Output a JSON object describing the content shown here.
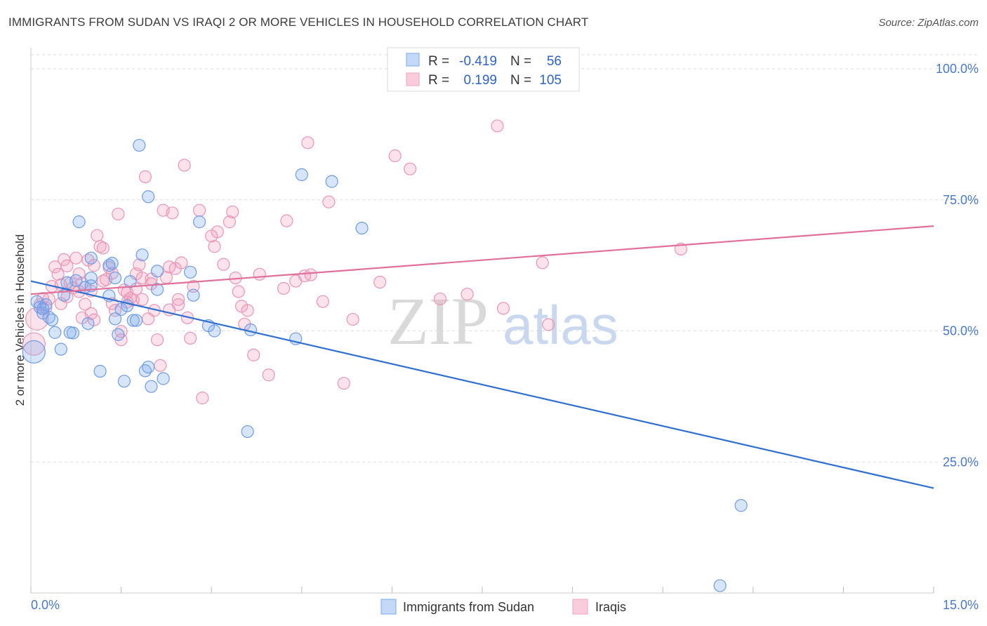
{
  "title": "IMMIGRANTS FROM SUDAN VS IRAQI 2 OR MORE VEHICLES IN HOUSEHOLD CORRELATION CHART",
  "source": "Source: ZipAtlas.com",
  "watermark": {
    "zip": "ZIP",
    "atlas": "atlas"
  },
  "colors": {
    "blue": "#7aaaf0",
    "blue_line": "#2f6fd0",
    "pink": "#f3a0bd",
    "pink_line": "#e07099",
    "tick": "#4a78c8"
  },
  "legend": {
    "rows": [
      {
        "r_label": "R =",
        "r_value": "-0.419",
        "n_label": "N =",
        "n_value": "56"
      },
      {
        "r_label": "R =",
        "r_value": "0.199",
        "n_label": "N =",
        "n_value": "105"
      }
    ]
  },
  "chart_data": {
    "type": "scatter",
    "title": "IMMIGRANTS FROM SUDAN VS IRAQI 2 OR MORE VEHICLES IN HOUSEHOLD CORRELATION CHART",
    "xlabel": "",
    "ylabel": "2 or more Vehicles in Household",
    "xlim": [
      0,
      15
    ],
    "ylim": [
      0,
      100
    ],
    "x_tick_labels": [
      "0.0%",
      "15.0%"
    ],
    "y_ticks": [
      25,
      50,
      75,
      100
    ],
    "y_tick_labels": [
      "25.0%",
      "50.0%",
      "75.0%",
      "100.0%"
    ],
    "grid": true,
    "legend_position": "top-center",
    "series": [
      {
        "name": "Immigrants from Sudan",
        "color": "blue",
        "R": -0.419,
        "N": 56,
        "trend": {
          "x": [
            0,
            15
          ],
          "y": [
            59.5,
            20.0
          ]
        },
        "points": [
          [
            0.1,
            55.6
          ],
          [
            0.15,
            54.5
          ],
          [
            0.2,
            53.4
          ],
          [
            0.25,
            55.0
          ],
          [
            0.3,
            52.6
          ],
          [
            0.35,
            52.1
          ],
          [
            0.4,
            49.7
          ],
          [
            0.5,
            46.5
          ],
          [
            0.55,
            56.8
          ],
          [
            0.6,
            59.2
          ],
          [
            0.7,
            49.6
          ],
          [
            0.75,
            59.6
          ],
          [
            0.8,
            70.8
          ],
          [
            0.9,
            58.3
          ],
          [
            0.95,
            51.4
          ],
          [
            1.0,
            60.1
          ],
          [
            1.0,
            58.6
          ],
          [
            1.0,
            63.9
          ],
          [
            1.15,
            42.3
          ],
          [
            1.3,
            62.5
          ],
          [
            1.3,
            56.7
          ],
          [
            1.35,
            62.9
          ],
          [
            1.4,
            60.1
          ],
          [
            1.4,
            52.3
          ],
          [
            1.45,
            49.3
          ],
          [
            1.5,
            54.1
          ],
          [
            1.55,
            40.4
          ],
          [
            1.6,
            54.8
          ],
          [
            1.65,
            59.4
          ],
          [
            1.7,
            52.0
          ],
          [
            1.8,
            85.4
          ],
          [
            1.85,
            64.5
          ],
          [
            1.9,
            42.4
          ],
          [
            1.95,
            43.1
          ],
          [
            1.95,
            75.6
          ],
          [
            2.0,
            39.4
          ],
          [
            2.1,
            57.9
          ],
          [
            2.1,
            61.4
          ],
          [
            2.2,
            40.9
          ],
          [
            2.65,
            61.2
          ],
          [
            2.7,
            56.8
          ],
          [
            2.8,
            70.8
          ],
          [
            2.95,
            51.0
          ],
          [
            3.05,
            50.0
          ],
          [
            3.6,
            30.8
          ],
          [
            3.65,
            50.2
          ],
          [
            4.4,
            48.5
          ],
          [
            4.5,
            79.8
          ],
          [
            5.0,
            78.5
          ],
          [
            5.5,
            69.6
          ],
          [
            11.8,
            16.7
          ],
          [
            11.45,
            1.4
          ],
          [
            0.05,
            46.0
          ],
          [
            0.2,
            54.2
          ],
          [
            0.65,
            49.7
          ],
          [
            1.75,
            52.0
          ]
        ],
        "sizes": {}
      },
      {
        "name": "Iraqis",
        "color": "pink",
        "R": 0.199,
        "N": 105,
        "trend": {
          "x": [
            0,
            15
          ],
          "y": [
            57.0,
            70.0
          ]
        },
        "points": [
          [
            0.1,
            52.3
          ],
          [
            0.15,
            55.0
          ],
          [
            0.2,
            56.2
          ],
          [
            0.25,
            54.4
          ],
          [
            0.3,
            56.1
          ],
          [
            0.35,
            58.5
          ],
          [
            0.4,
            62.2
          ],
          [
            0.45,
            60.8
          ],
          [
            0.5,
            58.8
          ],
          [
            0.5,
            55.2
          ],
          [
            0.55,
            63.6
          ],
          [
            0.6,
            62.4
          ],
          [
            0.65,
            59.1
          ],
          [
            0.7,
            58.2
          ],
          [
            0.75,
            63.9
          ],
          [
            0.8,
            60.9
          ],
          [
            0.85,
            59.1
          ],
          [
            0.85,
            52.5
          ],
          [
            0.9,
            55.1
          ],
          [
            0.95,
            63.5
          ],
          [
            1.0,
            57.6
          ],
          [
            1.0,
            53.3
          ],
          [
            1.05,
            52.1
          ],
          [
            1.1,
            68.2
          ],
          [
            1.15,
            66.1
          ],
          [
            1.2,
            59.5
          ],
          [
            1.25,
            59.8
          ],
          [
            1.3,
            62.1
          ],
          [
            1.35,
            61.0
          ],
          [
            1.35,
            55.2
          ],
          [
            1.4,
            53.9
          ],
          [
            1.45,
            72.3
          ],
          [
            1.5,
            49.9
          ],
          [
            1.5,
            48.3
          ],
          [
            1.55,
            57.8
          ],
          [
            1.6,
            57.3
          ],
          [
            1.65,
            56.2
          ],
          [
            1.7,
            55.9
          ],
          [
            1.75,
            60.9
          ],
          [
            1.8,
            62.6
          ],
          [
            1.85,
            60.1
          ],
          [
            1.85,
            56.0
          ],
          [
            1.9,
            79.4
          ],
          [
            1.95,
            52.3
          ],
          [
            2.0,
            59.9
          ],
          [
            2.05,
            53.9
          ],
          [
            2.1,
            48.3
          ],
          [
            2.15,
            43.4
          ],
          [
            2.2,
            73.0
          ],
          [
            2.25,
            60.2
          ],
          [
            2.3,
            62.2
          ],
          [
            2.35,
            72.5
          ],
          [
            2.4,
            61.9
          ],
          [
            2.45,
            55.0
          ],
          [
            2.5,
            63.0
          ],
          [
            2.55,
            81.6
          ],
          [
            2.6,
            52.5
          ],
          [
            2.65,
            48.6
          ],
          [
            2.7,
            58.5
          ],
          [
            2.8,
            73.0
          ],
          [
            2.85,
            37.2
          ],
          [
            3.0,
            68.1
          ],
          [
            3.05,
            66.1
          ],
          [
            3.1,
            68.9
          ],
          [
            3.2,
            62.7
          ],
          [
            3.3,
            70.8
          ],
          [
            3.35,
            72.7
          ],
          [
            3.4,
            60.1
          ],
          [
            3.45,
            57.5
          ],
          [
            3.5,
            54.7
          ],
          [
            3.55,
            51.3
          ],
          [
            3.6,
            53.9
          ],
          [
            3.7,
            45.4
          ],
          [
            3.95,
            41.6
          ],
          [
            4.2,
            58.1
          ],
          [
            4.25,
            71.0
          ],
          [
            4.4,
            59.5
          ],
          [
            4.55,
            60.5
          ],
          [
            4.6,
            85.9
          ],
          [
            4.65,
            60.7
          ],
          [
            4.85,
            55.6
          ],
          [
            4.95,
            74.6
          ],
          [
            5.2,
            40.0
          ],
          [
            5.35,
            52.2
          ],
          [
            5.8,
            59.3
          ],
          [
            6.05,
            83.4
          ],
          [
            6.3,
            80.9
          ],
          [
            6.8,
            56.1
          ],
          [
            7.25,
            57.0
          ],
          [
            7.75,
            89.1
          ],
          [
            7.85,
            54.3
          ],
          [
            8.5,
            63.0
          ],
          [
            8.6,
            51.2
          ],
          [
            10.8,
            65.6
          ],
          [
            0.05,
            47.5
          ],
          [
            0.6,
            56.5
          ],
          [
            1.05,
            62.5
          ],
          [
            1.6,
            55.5
          ],
          [
            1.75,
            58.0
          ],
          [
            2.3,
            54.0
          ],
          [
            2.45,
            56.0
          ],
          [
            3.8,
            60.8
          ],
          [
            0.8,
            57.5
          ],
          [
            1.2,
            65.8
          ],
          [
            2.0,
            59.0
          ]
        ],
        "sizes": {}
      }
    ]
  },
  "bottom_legend": [
    {
      "label": "Immigrants from Sudan",
      "color": "blue"
    },
    {
      "label": "Iraqis",
      "color": "pink"
    }
  ]
}
